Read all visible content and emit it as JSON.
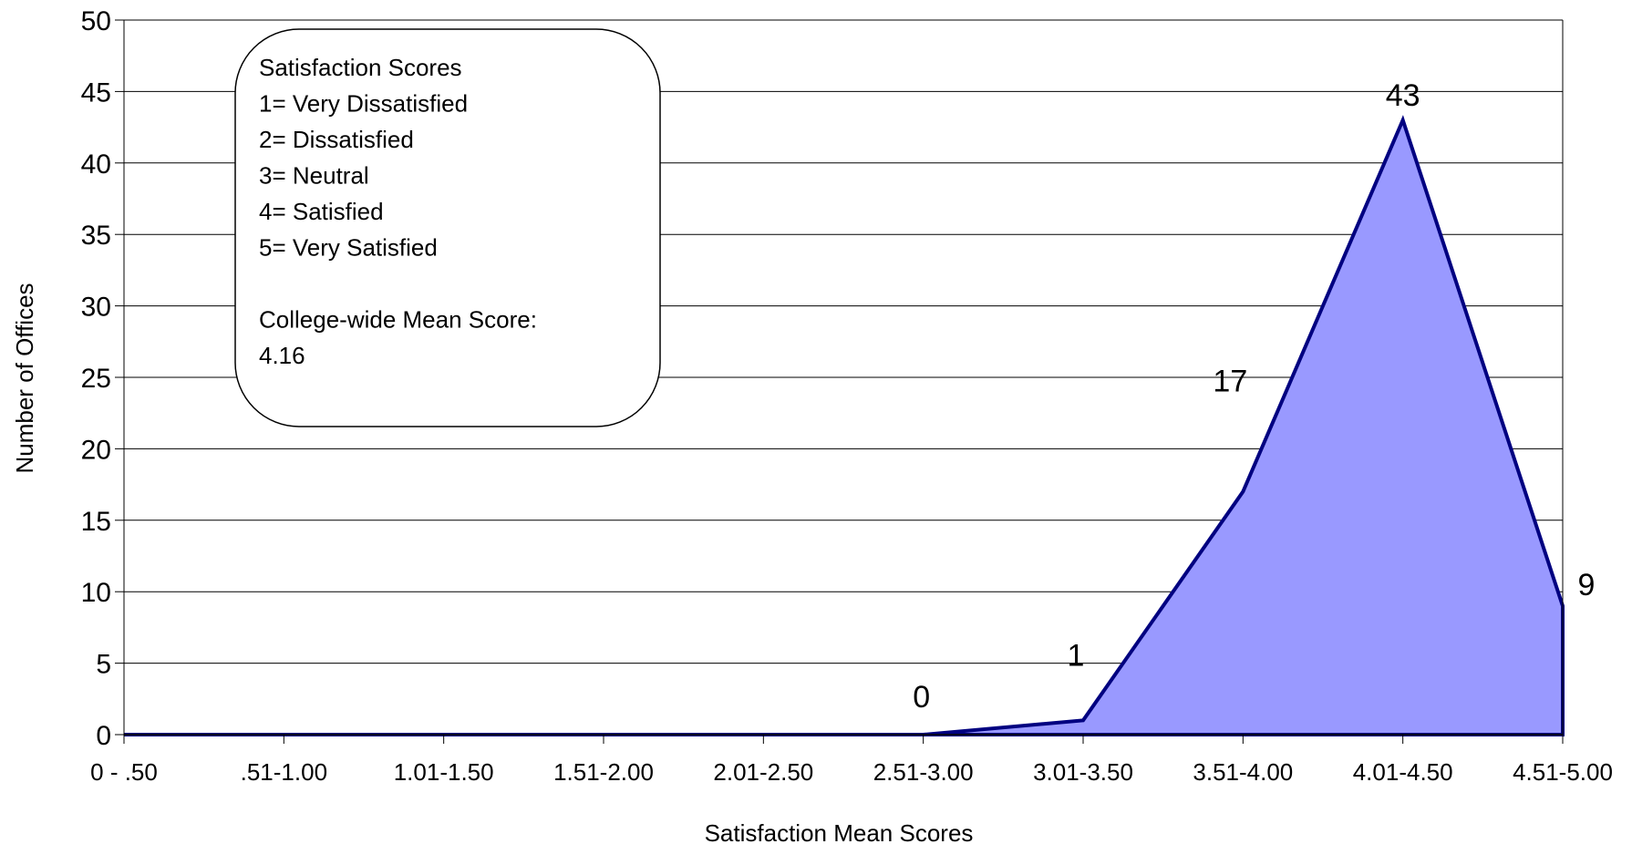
{
  "chart_data": {
    "type": "area",
    "title": "",
    "xlabel": "Satisfaction Mean Scores",
    "ylabel": "Number of Offices",
    "categories": [
      "0 - .50",
      ".51-1.00",
      "1.01-1.50",
      "1.51-2.00",
      "2.01-2.50",
      "2.51-3.00",
      "3.01-3.50",
      "3.51-4.00",
      "4.01-4.50",
      "4.51-5.00"
    ],
    "series": [
      {
        "values": [
          0,
          0,
          0,
          0,
          0,
          0,
          1,
          17,
          43,
          9
        ]
      }
    ],
    "data_labels": [
      {
        "category": "2.51-3.00",
        "text": "0"
      },
      {
        "category": "3.01-3.50",
        "text": "1"
      },
      {
        "category": "3.51-4.00",
        "text": "17"
      },
      {
        "category": "4.01-4.50",
        "text": "43"
      },
      {
        "category": "4.51-5.00",
        "text": "9"
      }
    ],
    "ylim": [
      0,
      50
    ],
    "yticks": [
      "0",
      "5",
      "10",
      "15",
      "20",
      "25",
      "30",
      "35",
      "40",
      "45",
      "50"
    ],
    "grid": "horizontal",
    "fill_color": "#9999ff",
    "line_color": "#000080",
    "annotation_box": {
      "lines": [
        "Satisfaction Scores",
        "1= Very Dissatisfied",
        "2= Dissatisfied",
        "3= Neutral",
        "4= Satisfied",
        "5= Very Satisfied",
        "",
        "College-wide Mean Score:",
        "4.16"
      ]
    }
  }
}
